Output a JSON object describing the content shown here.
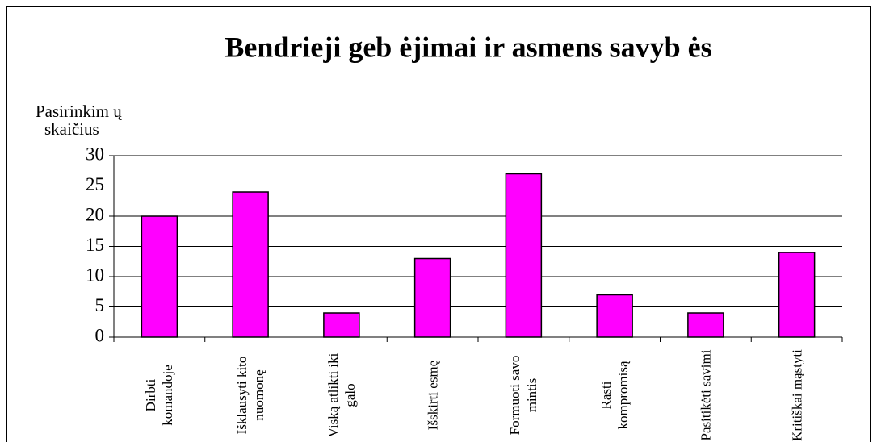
{
  "chart_data": {
    "type": "bar",
    "title": "Bendrieji geb ėjimai ir asmens savyb ės",
    "ylabel": [
      "Pasirinkim ų",
      "skaičius"
    ],
    "categories": [
      "Dirbti komandoje",
      "Išklausyti kito nuomonę",
      "Viską atlikti iki galo",
      "Išskirti esmę",
      "Formuoti savo mintis",
      "Rasti kompromisą",
      "Pasitikėti savimi",
      "Kritiškai mąstyti"
    ],
    "values": [
      20,
      24,
      4,
      13,
      27,
      7,
      4,
      14
    ],
    "color": "#ff00ff",
    "ylim": [
      0,
      30
    ],
    "yticks": [
      0,
      5,
      10,
      15,
      20,
      25,
      30
    ],
    "grid": true
  }
}
